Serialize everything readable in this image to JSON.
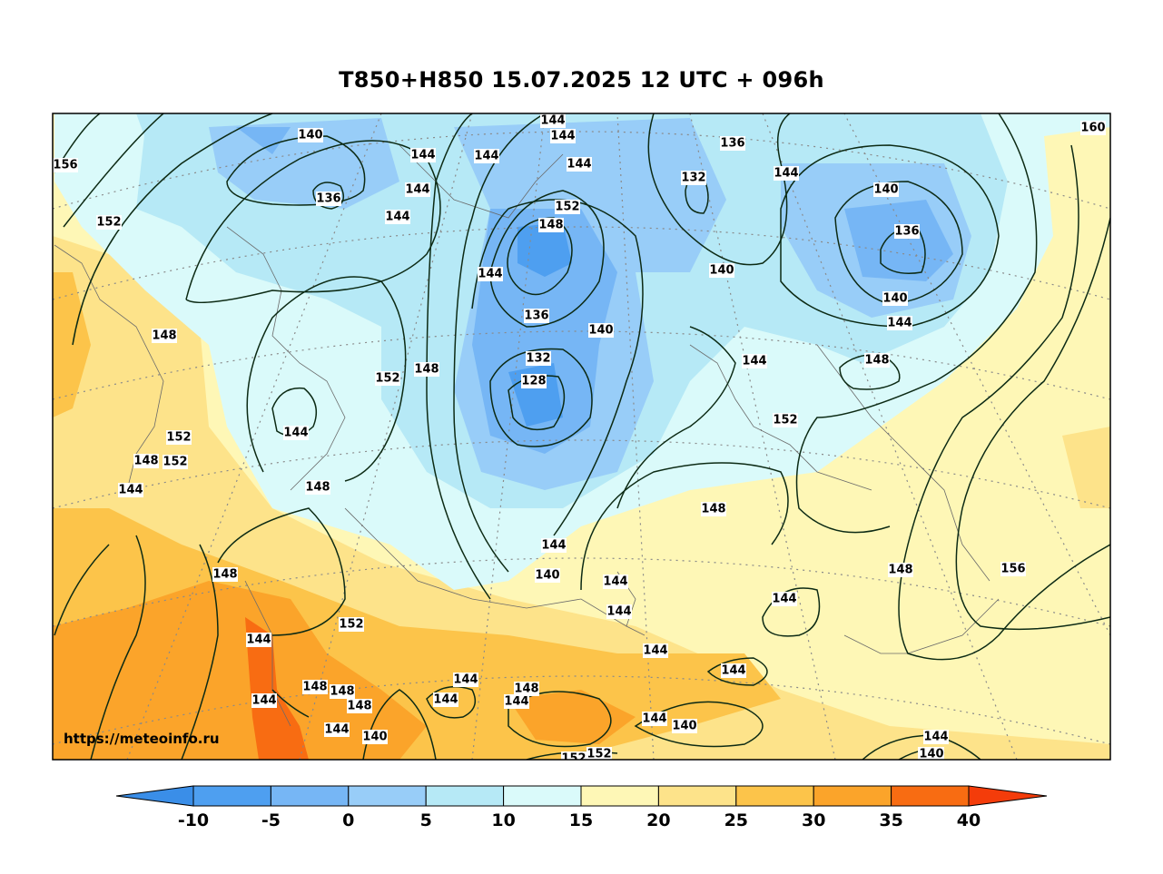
{
  "title": "T850+H850 15.07.2025 12 UTC + 096h",
  "watermark": "https://meteoinfo.ru",
  "colorbar": {
    "ticks": [
      "-10",
      "-5",
      "0",
      "5",
      "10",
      "15",
      "20",
      "25",
      "30",
      "35",
      "40"
    ],
    "colors": {
      "below_min": "#3a8ee8",
      "m10_m5": "#4e9ff0",
      "m5_0": "#76b6f5",
      "0_5": "#98cdf8",
      "5_10": "#b6e9f6",
      "10_15": "#dafafa",
      "15_20": "#fef7b6",
      "20_25": "#fde38a",
      "25_30": "#fcc44a",
      "30_35": "#fba42a",
      "35_40": "#f86c12",
      "above_max": "#f43c0a"
    }
  },
  "contour_labels": [
    "140",
    "144",
    "136",
    "144",
    "144",
    "144",
    "144",
    "144",
    "144",
    "156",
    "152",
    "144",
    "136",
    "132",
    "140",
    "152",
    "148",
    "144",
    "140",
    "136",
    "140",
    "144",
    "148",
    "136",
    "140",
    "132",
    "128",
    "152",
    "148",
    "148",
    "144",
    "152",
    "152",
    "152",
    "148",
    "144",
    "148",
    "144",
    "148",
    "156",
    "140",
    "144",
    "144",
    "148",
    "144",
    "144",
    "144",
    "144",
    "144",
    "148",
    "148",
    "148",
    "144",
    "144",
    "144",
    "144",
    "144",
    "148",
    "144",
    "140",
    "140",
    "144",
    "140",
    "152",
    "152",
    "152",
    "140",
    "160",
    "148"
  ]
}
